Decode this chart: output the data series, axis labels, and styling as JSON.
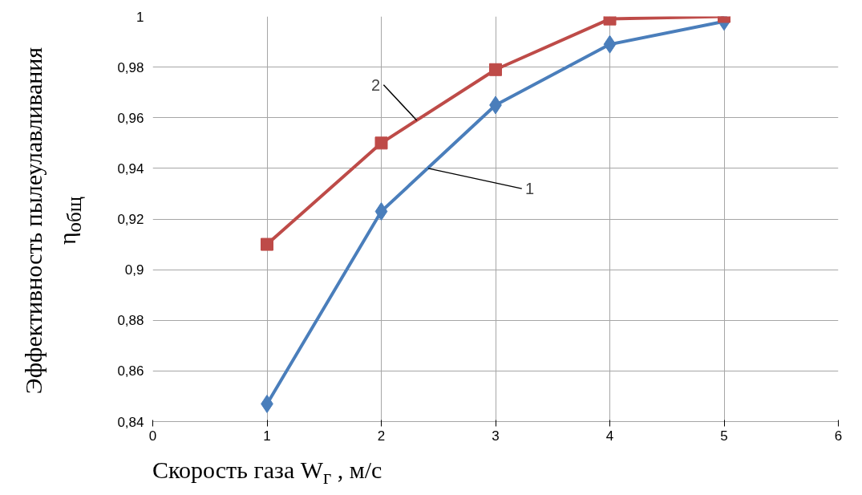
{
  "chart_data": {
    "type": "line",
    "xlabel": "Скорость газа W$_{г}$ , м/с",
    "ylabel": "Эффективность  пылеулавливания\nη$_{общ}$",
    "x": [
      1,
      2,
      3,
      4,
      5
    ],
    "series": [
      {
        "color": "#4a7ebb",
        "marker": "diamond",
        "values": [
          0.847,
          0.923,
          0.965,
          0.989,
          0.998
        ]
      },
      {
        "color": "#be4b48",
        "marker": "square",
        "values": [
          0.91,
          0.95,
          0.979,
          0.999,
          1.0
        ]
      }
    ],
    "xlim": [
      0,
      6
    ],
    "xticks": [
      0,
      1,
      2,
      3,
      4,
      5,
      6
    ],
    "ylim": [
      0.84,
      1
    ],
    "yticks": [
      {
        "value": 0.84,
        "label": "0,84"
      },
      {
        "value": 0.86,
        "label": "0,86"
      },
      {
        "value": 0.88,
        "label": "0,88"
      },
      {
        "value": 0.9,
        "label": "0,9"
      },
      {
        "value": 0.92,
        "label": "0,92"
      },
      {
        "value": 0.94,
        "label": "0,94"
      },
      {
        "value": 0.96,
        "label": "0,96"
      },
      {
        "value": 0.98,
        "label": "0,98"
      },
      {
        "value": 1,
        "label": "1"
      }
    ],
    "annotations": [
      {
        "text": "2",
        "x": 2.31,
        "y": 0.959
      },
      {
        "text": "1",
        "x": 2.41,
        "y": 0.94
      }
    ],
    "grid": true,
    "line_style": "solid"
  }
}
